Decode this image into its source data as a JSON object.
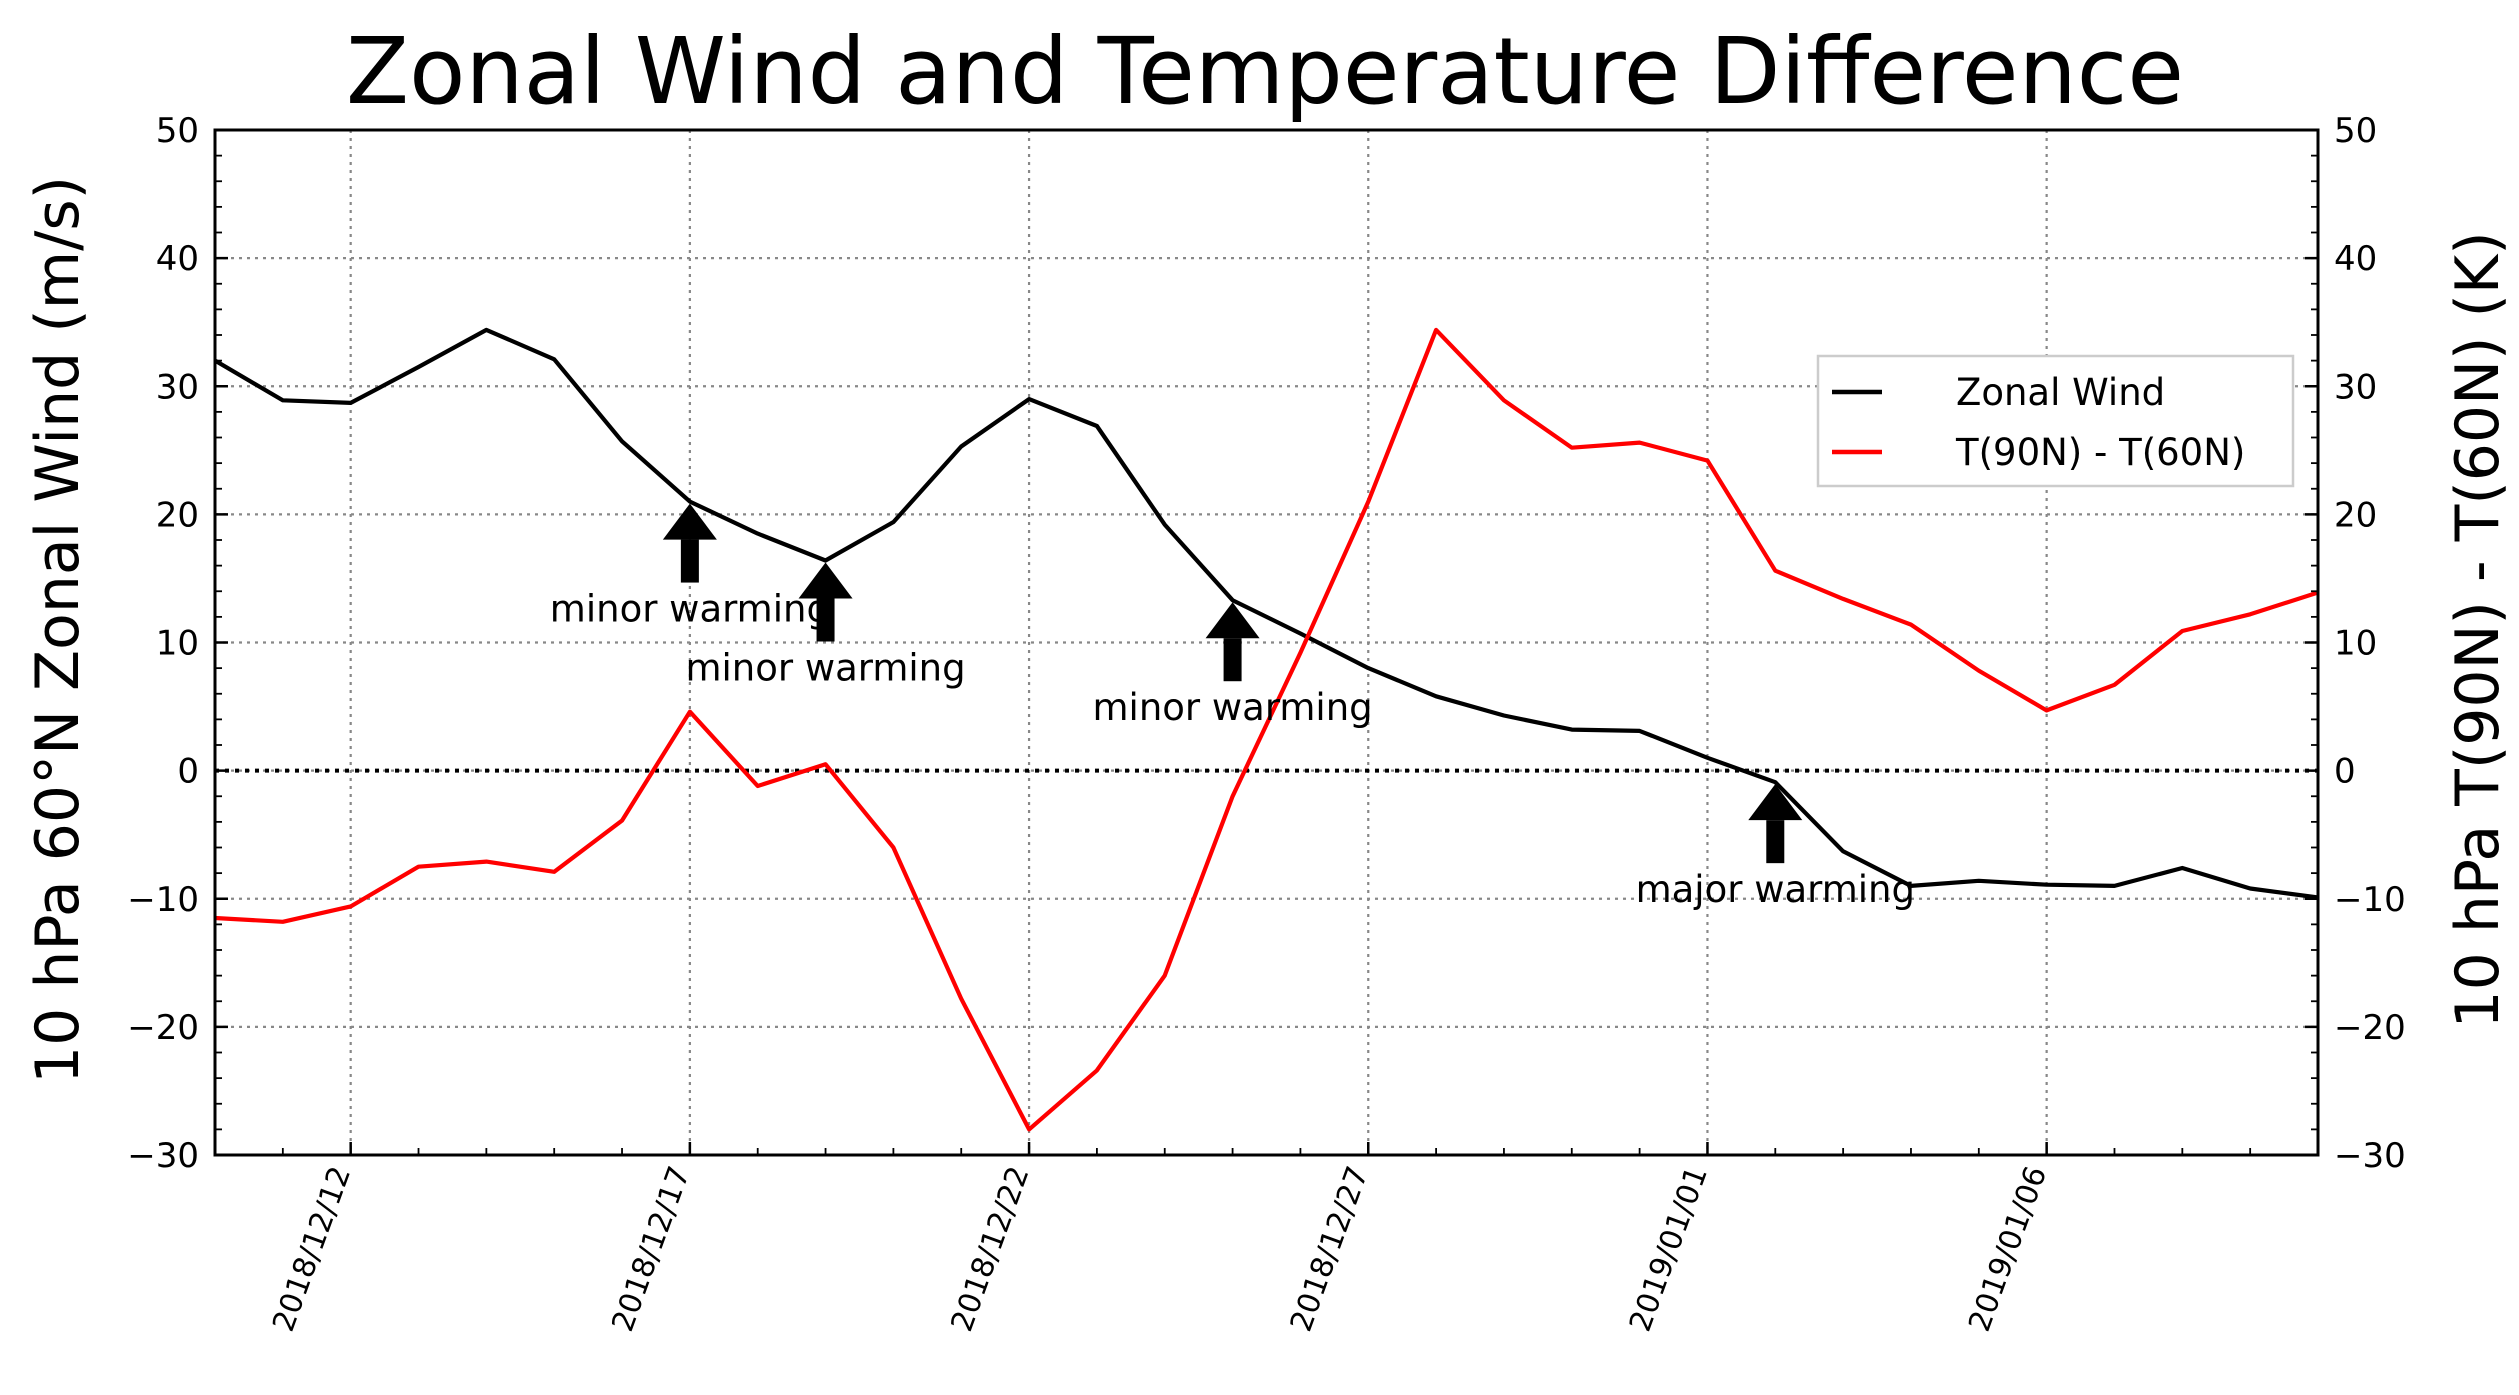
{
  "chart_data": {
    "type": "line",
    "title": "Zonal Wind and Temperature Difference",
    "ylabel_left": "10 hPa 60°N Zonal Wind (m/s)",
    "ylabel_right": "10 hPa T(90N) - T(60N) (K)",
    "xlabel": "",
    "ylim": [
      -30,
      50
    ],
    "xlim": [
      "2018-12-10",
      "2019-01-10"
    ],
    "yticks": [
      "−30",
      "−20",
      "−10",
      "0",
      "10",
      "20",
      "30",
      "40",
      "50"
    ],
    "xtick_labels": [
      "2018/12/12",
      "2018/12/17",
      "2018/12/22",
      "2018/12/27",
      "2019/01/01",
      "2019/01/06"
    ],
    "grid": true,
    "legend_position": "upper right",
    "x": [
      "2018-12-10",
      "2018-12-11",
      "2018-12-12",
      "2018-12-13",
      "2018-12-14",
      "2018-12-15",
      "2018-12-16",
      "2018-12-17",
      "2018-12-18",
      "2018-12-19",
      "2018-12-20",
      "2018-12-21",
      "2018-12-22",
      "2018-12-23",
      "2018-12-24",
      "2018-12-25",
      "2018-12-26",
      "2018-12-27",
      "2018-12-28",
      "2018-12-29",
      "2018-12-30",
      "2018-12-31",
      "2019-01-01",
      "2019-01-02",
      "2019-01-03",
      "2019-01-04",
      "2019-01-05",
      "2019-01-06",
      "2019-01-07",
      "2019-01-08",
      "2019-01-09",
      "2019-01-10"
    ],
    "series": [
      {
        "name": "Zonal Wind",
        "color": "#000000",
        "values": [
          32.0,
          28.9,
          28.7,
          31.5,
          34.4,
          32.1,
          25.7,
          21.0,
          18.5,
          16.4,
          19.4,
          25.3,
          29.0,
          26.9,
          19.2,
          13.3,
          10.7,
          8.0,
          5.8,
          4.3,
          3.2,
          3.1,
          1.0,
          -0.9,
          -6.3,
          -9.0,
          -8.6,
          -8.9,
          -9.0,
          -7.6,
          -9.2,
          -9.9
        ]
      },
      {
        "name": "T(90N) - T(60N)",
        "color": "#ff0000",
        "values": [
          -11.5,
          -11.8,
          -10.6,
          -7.5,
          -7.1,
          -7.9,
          -3.9,
          4.6,
          -1.2,
          0.5,
          -6.0,
          -17.8,
          -28.0,
          -23.4,
          -16.0,
          -2.0,
          9.2,
          21.0,
          34.4,
          28.9,
          25.2,
          25.6,
          24.2,
          15.6,
          13.4,
          11.4,
          7.8,
          4.7,
          6.7,
          10.9,
          12.2,
          13.9
        ]
      }
    ],
    "zero_line": true,
    "annotations": [
      {
        "text": "minor warming",
        "date": "2018-12-17",
        "y": 21.0
      },
      {
        "text": "minor warming",
        "date": "2018-12-19",
        "y": 16.4
      },
      {
        "text": "minor warming",
        "date": "2018-12-25",
        "y": 13.3
      },
      {
        "text": "major warming",
        "date": "2019-01-02",
        "y": -0.9
      }
    ]
  }
}
